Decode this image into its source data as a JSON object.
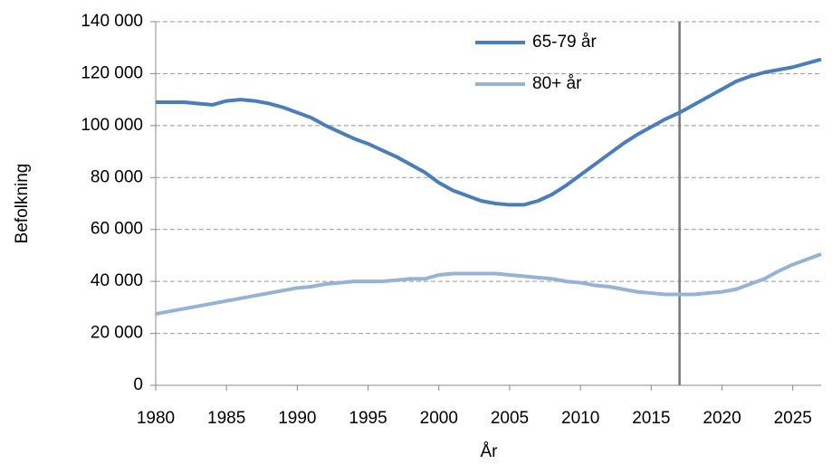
{
  "chart_data": {
    "type": "line",
    "x_label": "År",
    "y_label": "Befolkning",
    "x": [
      1980,
      1981,
      1982,
      1983,
      1984,
      1985,
      1986,
      1987,
      1988,
      1989,
      1990,
      1991,
      1992,
      1993,
      1994,
      1995,
      1996,
      1997,
      1998,
      1999,
      2000,
      2001,
      2002,
      2003,
      2004,
      2005,
      2006,
      2007,
      2008,
      2009,
      2010,
      2011,
      2012,
      2013,
      2014,
      2015,
      2016,
      2017,
      2018,
      2019,
      2020,
      2021,
      2022,
      2023,
      2024,
      2025,
      2026,
      2027
    ],
    "series": [
      {
        "name": "65-79 år",
        "color": "#4a7ebb",
        "values": [
          109000,
          109000,
          109000,
          108500,
          108000,
          109500,
          110000,
          109500,
          108500,
          107000,
          105000,
          103000,
          100000,
          97500,
          95000,
          93000,
          90500,
          88000,
          85000,
          82000,
          78000,
          75000,
          73000,
          71000,
          70000,
          69500,
          69500,
          71000,
          73500,
          77000,
          81000,
          85000,
          89000,
          93000,
          96500,
          99500,
          102500,
          105000,
          108000,
          111000,
          114000,
          117000,
          119000,
          120500,
          121500,
          122500,
          124000,
          125500
        ]
      },
      {
        "name": "80+ år",
        "color": "#95b3d7",
        "values": [
          27500,
          28500,
          29500,
          30500,
          31500,
          32500,
          33500,
          34500,
          35500,
          36500,
          37500,
          38000,
          39000,
          39500,
          40000,
          40000,
          40000,
          40500,
          41000,
          41000,
          42500,
          43000,
          43000,
          43000,
          43000,
          42500,
          42000,
          41500,
          41000,
          40000,
          39500,
          38500,
          38000,
          37000,
          36000,
          35500,
          35000,
          35000,
          35000,
          35500,
          36000,
          37000,
          39000,
          41000,
          44000,
          46500,
          48500,
          50500
        ]
      }
    ],
    "xlim": [
      1980,
      2027
    ],
    "xticks": [
      1980,
      1985,
      1990,
      1995,
      2000,
      2005,
      2010,
      2015,
      2020,
      2025
    ],
    "ylim": [
      0,
      140000
    ],
    "yticks": [
      0,
      {
        "value": 20000,
        "label": "20 000"
      },
      {
        "value": 40000,
        "label": "40 000"
      },
      {
        "value": 60000,
        "label": "60 000"
      },
      {
        "value": 80000,
        "label": "80 000"
      },
      {
        "value": 100000,
        "label": "100 000"
      },
      {
        "value": 120000,
        "label": "120 000"
      },
      {
        "value": 140000,
        "label": "140 000"
      }
    ],
    "reference_x": 2017,
    "grid": true,
    "legend": "top"
  }
}
